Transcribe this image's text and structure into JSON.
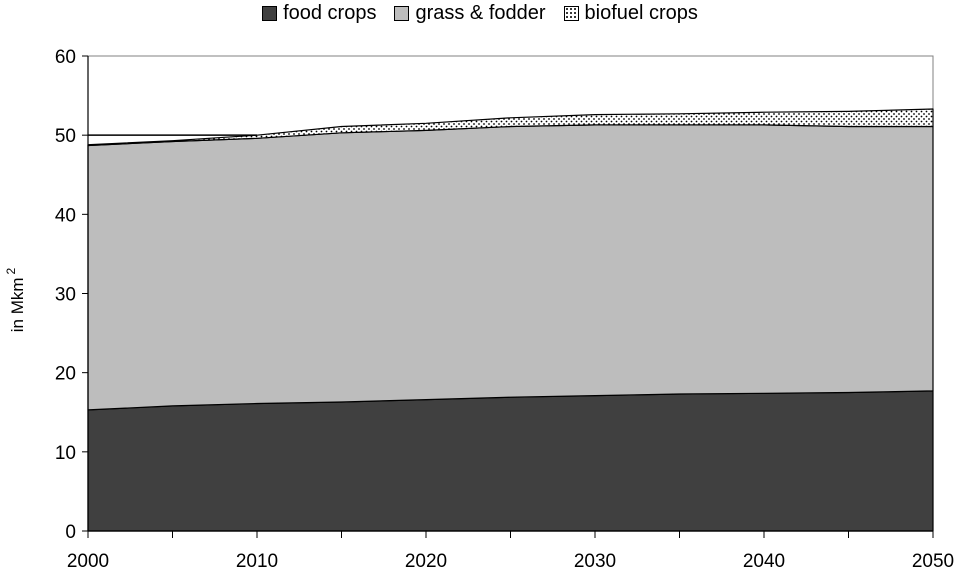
{
  "chart_data": {
    "type": "area",
    "stacked": true,
    "x": [
      2000,
      2005,
      2010,
      2015,
      2020,
      2025,
      2030,
      2035,
      2040,
      2045,
      2050
    ],
    "series": [
      {
        "name": "food crops",
        "values": [
          15.3,
          15.8,
          16.1,
          16.3,
          16.6,
          16.9,
          17.1,
          17.3,
          17.4,
          17.5,
          17.7
        ],
        "color": "#404040"
      },
      {
        "name": "grass & fodder",
        "values": [
          33.4,
          33.4,
          33.5,
          34.0,
          34.0,
          34.2,
          34.2,
          34.0,
          33.9,
          33.6,
          33.4
        ],
        "color": "#bdbdbd"
      },
      {
        "name": "biofuel crops",
        "values": [
          0.1,
          0.1,
          0.4,
          0.8,
          0.9,
          1.1,
          1.3,
          1.4,
          1.6,
          1.9,
          2.2
        ],
        "pattern": "dots"
      }
    ],
    "reference_line": 50,
    "xlim": [
      2000,
      2050
    ],
    "ylim": [
      0,
      60
    ],
    "xticks": [
      "2000",
      "2010",
      "2020",
      "2030",
      "2040",
      "2050"
    ],
    "yticks": [
      "0",
      "10",
      "20",
      "30",
      "40",
      "50",
      "60"
    ],
    "ylabel": "in Mkm",
    "ylabel_superscript": "2",
    "legend_position": "top-center",
    "grid": false
  }
}
